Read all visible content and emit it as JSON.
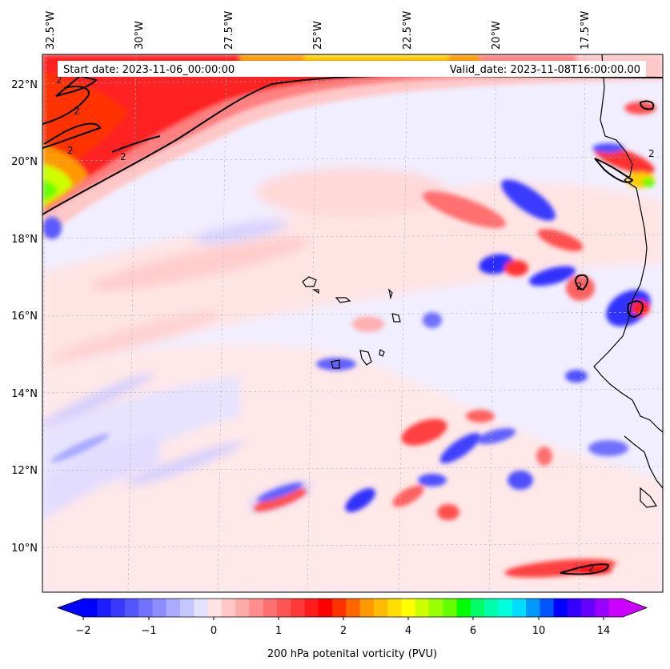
{
  "header": {
    "start_label": "Start date: 2023-11-06_00:00:00",
    "valid_label": "Valid_date: 2023-11-08T16:00:00.00"
  },
  "map": {
    "lon_ticks": [
      "32.5°W",
      "30°W",
      "27.5°W",
      "25°W",
      "22.5°W",
      "20°W",
      "17.5°W"
    ],
    "lat_ticks": [
      "22°N",
      "20°N",
      "18°N",
      "16°N",
      "14°N",
      "12°N",
      "10°N"
    ],
    "contour_level": "2"
  },
  "colorbar": {
    "caption": "200 hPa potenital vorticity (PVU)",
    "tick_labels": [
      "−2",
      "−1",
      "0",
      "1",
      "2",
      "4",
      "6",
      "10",
      "14"
    ],
    "colors": [
      "#0000ff",
      "#1c1cff",
      "#3838ff",
      "#5555ff",
      "#7171ff",
      "#8d8dff",
      "#aaaaff",
      "#c6c6ff",
      "#e2e2ff",
      "#ffe2e2",
      "#ffc6c6",
      "#ffaaaa",
      "#ff8d8d",
      "#ff7171",
      "#ff5555",
      "#ff3838",
      "#ff1c1c",
      "#ff0000",
      "#ff3300",
      "#ff6600",
      "#ff9900",
      "#ffbb00",
      "#ffdd00",
      "#ffff00",
      "#ccff00",
      "#99ff00",
      "#66ff00",
      "#00ff00",
      "#00ff66",
      "#00ffaa",
      "#00ffdd",
      "#00ddff",
      "#0099ff",
      "#0055ff",
      "#0000ff",
      "#3300ff",
      "#6600ff",
      "#9900ff",
      "#cc00ff"
    ]
  }
}
